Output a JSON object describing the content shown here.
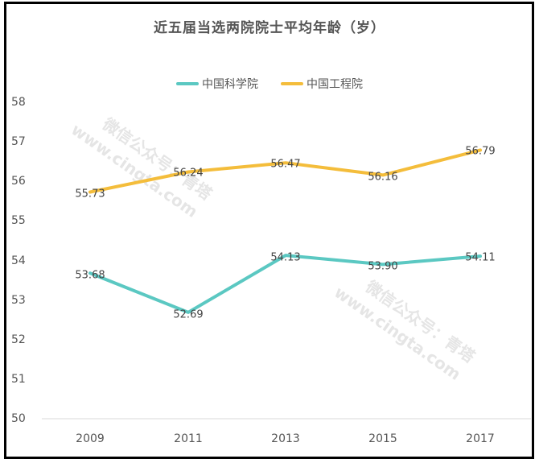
{
  "chart_data": {
    "type": "line",
    "title": "近五届当选两院院士平均年龄（岁）",
    "xlabel": "",
    "ylabel": "",
    "categories": [
      "2009",
      "2011",
      "2013",
      "2015",
      "2017"
    ],
    "series": [
      {
        "name": "中国科学院",
        "color": "#5bc8c2",
        "values": [
          53.68,
          52.69,
          54.13,
          53.9,
          54.11
        ],
        "labels": [
          "53.68",
          "52.69",
          "54.13",
          "53.90",
          "54.11"
        ]
      },
      {
        "name": "中国工程院",
        "color": "#f4bd3b",
        "values": [
          55.73,
          56.24,
          56.47,
          56.16,
          56.79
        ],
        "labels": [
          "55.73",
          "56.24",
          "56.47",
          "56.16",
          "56.79"
        ]
      }
    ],
    "ylim": [
      50,
      58
    ],
    "yticks": [
      "58",
      "57",
      "56",
      "55",
      "54",
      "53",
      "52",
      "51",
      "50"
    ],
    "grid": false,
    "legend_position": "top"
  },
  "watermarks": [
    {
      "line1": "微信公众号：青塔",
      "line2": "www.cingta.com"
    },
    {
      "line1": "微信公众号：青塔",
      "line2": "www.cingta.com"
    }
  ]
}
